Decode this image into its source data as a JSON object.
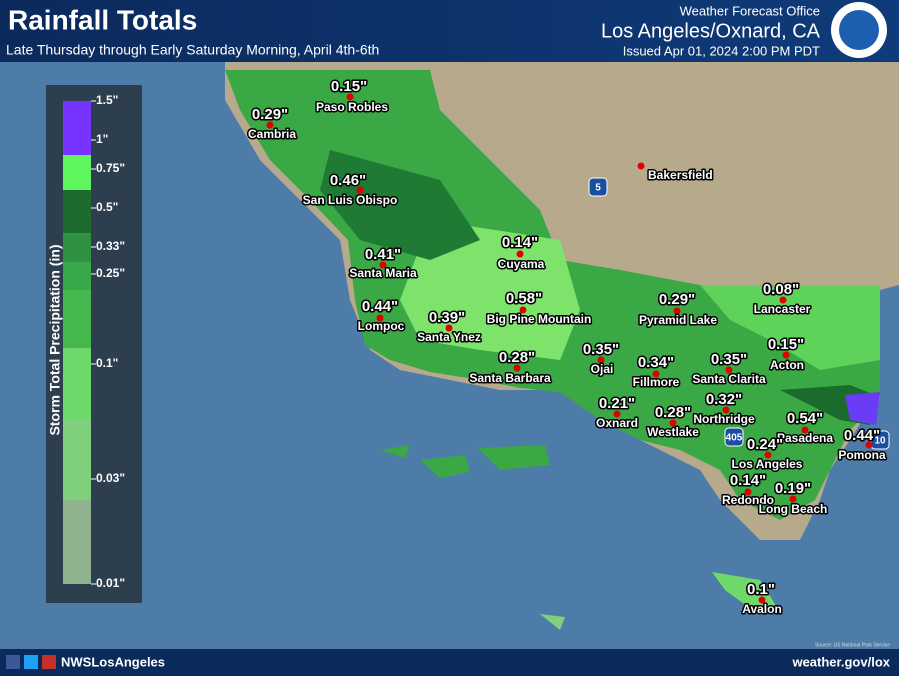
{
  "header": {
    "title": "Rainfall Totals",
    "subtitle": "Late Thursday through Early Saturday Morning, April 4th-6th",
    "office": "Weather Forecast Office",
    "location": "Los Angeles/Oxnard, CA",
    "issued": "Issued Apr 01, 2024 2:00 PM PDT"
  },
  "legend": {
    "title": "Storm Total Precipitation (in)",
    "ticks": [
      "1.5\"",
      "1\"",
      "0.75\"",
      "0.5\"",
      "0.33\"",
      "0.25\"",
      "0.1\"",
      "0.03\"",
      "0.01\""
    ]
  },
  "cities": [
    {
      "name": "Paso Robles",
      "amount": "0.15\""
    },
    {
      "name": "Cambria",
      "amount": "0.29\""
    },
    {
      "name": "San Luis Obispo",
      "amount": "0.46\""
    },
    {
      "name": "Santa Maria",
      "amount": "0.41\""
    },
    {
      "name": "Lompoc",
      "amount": "0.44\""
    },
    {
      "name": "Santa Ynez",
      "amount": "0.39\""
    },
    {
      "name": "Big Pine Mountain",
      "amount": "0.58\""
    },
    {
      "name": "Cuyama",
      "amount": "0.14\""
    },
    {
      "name": "Bakersfield"
    },
    {
      "name": "Santa Barbara",
      "amount": "0.28\""
    },
    {
      "name": "Pyramid Lake",
      "amount": "0.29\""
    },
    {
      "name": "Lancaster",
      "amount": "0.08\""
    },
    {
      "name": "Ojai",
      "amount": "0.35\""
    },
    {
      "name": "Fillmore",
      "amount": "0.34\""
    },
    {
      "name": "Santa Clarita",
      "amount": "0.35\""
    },
    {
      "name": "Acton",
      "amount": "0.15\""
    },
    {
      "name": "Oxnard",
      "amount": "0.21\""
    },
    {
      "name": "Westlake",
      "amount": "0.28\""
    },
    {
      "name": "Northridge",
      "amount": "0.32\""
    },
    {
      "name": "Pasadena",
      "amount": "0.54\""
    },
    {
      "name": "Pomona",
      "amount": "0.44\""
    },
    {
      "name": "Los Angeles",
      "amount": "0.24\""
    },
    {
      "name": "Redondo",
      "amount": "0.14\""
    },
    {
      "name": "Long Beach",
      "amount": "0.19\""
    },
    {
      "name": "Avalon",
      "amount": "0.1\""
    }
  ],
  "highways": [
    "5",
    "405",
    "10"
  ],
  "source": "Source: US National Park Service",
  "footer": {
    "social": "NWSLosAngeles",
    "url": "weather.gov/lox"
  }
}
